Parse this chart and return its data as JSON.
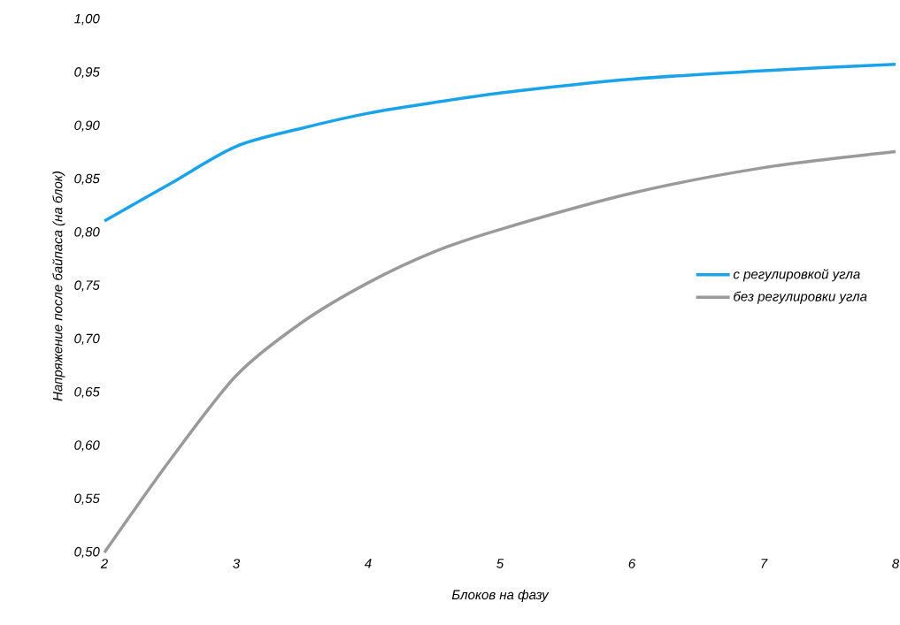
{
  "chart_data": {
    "type": "line",
    "xlabel": "Блоков на фазу",
    "ylabel": "Напряжение после байпаса (на блок)",
    "x": [
      2,
      2.5,
      3,
      3.5,
      4,
      4.5,
      5,
      6,
      7,
      8
    ],
    "series": [
      {
        "name": "с регулировкой угла",
        "color": "#1aa3e8",
        "values": [
          0.811,
          0.846,
          0.881,
          0.898,
          0.912,
          0.922,
          0.931,
          0.944,
          0.952,
          0.958
        ]
      },
      {
        "name": "без регулировки угла",
        "color": "#9a9a9a",
        "values": [
          0.5,
          0.587,
          0.666,
          0.716,
          0.753,
          0.782,
          0.803,
          0.837,
          0.861,
          0.876
        ]
      }
    ],
    "xlim": [
      2,
      8
    ],
    "ylim": [
      0.5,
      1.0
    ],
    "xticks": [
      2,
      3,
      4,
      5,
      6,
      7,
      8
    ],
    "yticks": [
      {
        "value": 0.5,
        "label": "0,50"
      },
      {
        "value": 0.55,
        "label": "0,55"
      },
      {
        "value": 0.6,
        "label": "0,60"
      },
      {
        "value": 0.65,
        "label": "0,65"
      },
      {
        "value": 0.7,
        "label": "0,70"
      },
      {
        "value": 0.75,
        "label": "0,75"
      },
      {
        "value": 0.8,
        "label": "0,80"
      },
      {
        "value": 0.85,
        "label": "0,85"
      },
      {
        "value": 0.9,
        "label": "0,90"
      },
      {
        "value": 0.95,
        "label": "0,95"
      },
      {
        "value": 1.0,
        "label": "1,00"
      }
    ],
    "legend": "right",
    "marker": "none",
    "line_style": "solid"
  }
}
